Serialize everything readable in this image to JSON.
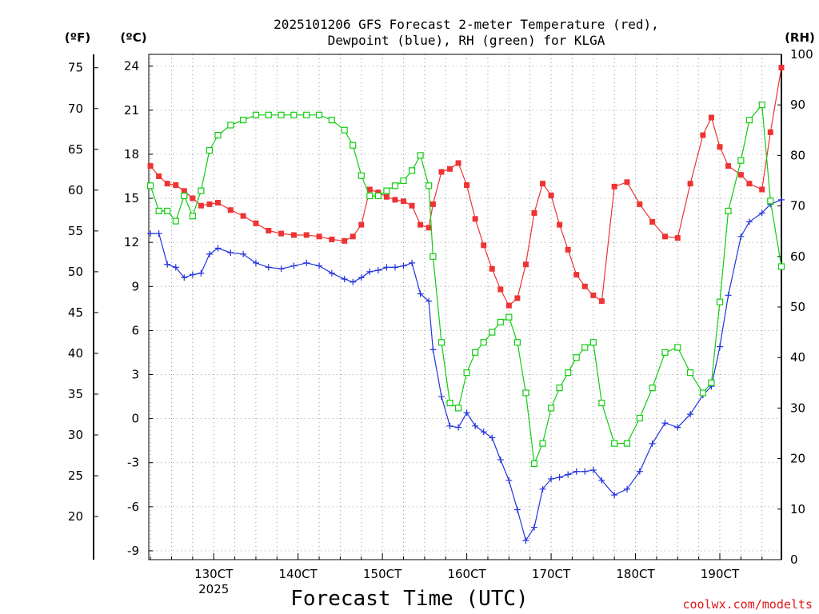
{
  "chart_data": {
    "type": "line",
    "title_line1": "2025101206 GFS Forecast 2-meter Temperature (red),",
    "title_line2": "Dewpoint (blue), RH (green) for KLGA",
    "xlabel": "Forecast Time (UTC)",
    "credit": "coolwx.com/modelts",
    "unit_f": "(ºF)",
    "unit_c": "(ºC)",
    "unit_rh": "(RH)",
    "x_range_day": [
      12.23,
      19.73
    ],
    "c_range": [
      -9.6,
      24.8
    ],
    "rh_range": [
      0,
      100
    ],
    "c_ticks": [
      -9,
      -6,
      -3,
      0,
      3,
      6,
      9,
      12,
      15,
      18,
      21,
      24
    ],
    "f_ticks": [
      20,
      25,
      30,
      35,
      40,
      45,
      50,
      55,
      60,
      65,
      70,
      75
    ],
    "rh_ticks": [
      0,
      10,
      20,
      30,
      40,
      50,
      60,
      70,
      80,
      90,
      100
    ],
    "x_ticks": [
      {
        "day": 13,
        "label": "130CT",
        "sub": "2025"
      },
      {
        "day": 14,
        "label": "140CT",
        "sub": ""
      },
      {
        "day": 15,
        "label": "150CT",
        "sub": ""
      },
      {
        "day": 16,
        "label": "160CT",
        "sub": ""
      },
      {
        "day": 17,
        "label": "170CT",
        "sub": ""
      },
      {
        "day": 18,
        "label": "180CT",
        "sub": ""
      },
      {
        "day": 19,
        "label": "190CT",
        "sub": ""
      }
    ],
    "series": [
      {
        "name": "Temperature (°C)",
        "axis": "c",
        "color": "#ee3333",
        "marker": "filled-square",
        "points": [
          [
            12.25,
            17.2
          ],
          [
            12.35,
            16.5
          ],
          [
            12.45,
            16.0
          ],
          [
            12.55,
            15.9
          ],
          [
            12.65,
            15.5
          ],
          [
            12.75,
            15.0
          ],
          [
            12.85,
            14.5
          ],
          [
            12.95,
            14.6
          ],
          [
            13.05,
            14.7
          ],
          [
            13.2,
            14.2
          ],
          [
            13.35,
            13.8
          ],
          [
            13.5,
            13.3
          ],
          [
            13.65,
            12.8
          ],
          [
            13.8,
            12.6
          ],
          [
            13.95,
            12.5
          ],
          [
            14.1,
            12.5
          ],
          [
            14.25,
            12.4
          ],
          [
            14.4,
            12.2
          ],
          [
            14.55,
            12.1
          ],
          [
            14.65,
            12.4
          ],
          [
            14.75,
            13.2
          ],
          [
            14.85,
            15.6
          ],
          [
            14.95,
            15.4
          ],
          [
            15.05,
            15.1
          ],
          [
            15.15,
            14.9
          ],
          [
            15.25,
            14.8
          ],
          [
            15.35,
            14.5
          ],
          [
            15.45,
            13.2
          ],
          [
            15.55,
            13.0
          ],
          [
            15.6,
            14.6
          ],
          [
            15.7,
            16.8
          ],
          [
            15.8,
            17.0
          ],
          [
            15.9,
            17.4
          ],
          [
            16.0,
            15.9
          ],
          [
            16.1,
            13.6
          ],
          [
            16.2,
            11.8
          ],
          [
            16.3,
            10.2
          ],
          [
            16.4,
            8.8
          ],
          [
            16.5,
            7.7
          ],
          [
            16.6,
            8.2
          ],
          [
            16.7,
            10.5
          ],
          [
            16.8,
            14.0
          ],
          [
            16.9,
            16.0
          ],
          [
            17.0,
            15.2
          ],
          [
            17.1,
            13.2
          ],
          [
            17.2,
            11.5
          ],
          [
            17.3,
            9.8
          ],
          [
            17.4,
            9.0
          ],
          [
            17.5,
            8.4
          ],
          [
            17.6,
            8.0
          ],
          [
            17.75,
            15.8
          ],
          [
            17.9,
            16.1
          ],
          [
            18.05,
            14.6
          ],
          [
            18.2,
            13.4
          ],
          [
            18.35,
            12.4
          ],
          [
            18.5,
            12.3
          ],
          [
            18.65,
            16.0
          ],
          [
            18.8,
            19.3
          ],
          [
            18.9,
            20.5
          ],
          [
            19.0,
            18.5
          ],
          [
            19.1,
            17.2
          ],
          [
            19.25,
            16.6
          ],
          [
            19.35,
            16.0
          ],
          [
            19.5,
            15.6
          ],
          [
            19.6,
            19.5
          ],
          [
            19.73,
            23.9
          ]
        ]
      },
      {
        "name": "Dewpoint (°C)",
        "axis": "c",
        "color": "#2233dd",
        "marker": "plus",
        "points": [
          [
            12.25,
            12.6
          ],
          [
            12.35,
            12.6
          ],
          [
            12.45,
            10.5
          ],
          [
            12.55,
            10.3
          ],
          [
            12.65,
            9.6
          ],
          [
            12.75,
            9.8
          ],
          [
            12.85,
            9.9
          ],
          [
            12.95,
            11.2
          ],
          [
            13.05,
            11.6
          ],
          [
            13.2,
            11.3
          ],
          [
            13.35,
            11.2
          ],
          [
            13.5,
            10.6
          ],
          [
            13.65,
            10.3
          ],
          [
            13.8,
            10.2
          ],
          [
            13.95,
            10.4
          ],
          [
            14.1,
            10.6
          ],
          [
            14.25,
            10.4
          ],
          [
            14.4,
            9.9
          ],
          [
            14.55,
            9.5
          ],
          [
            14.65,
            9.3
          ],
          [
            14.75,
            9.6
          ],
          [
            14.85,
            10.0
          ],
          [
            14.95,
            10.1
          ],
          [
            15.05,
            10.3
          ],
          [
            15.15,
            10.3
          ],
          [
            15.25,
            10.4
          ],
          [
            15.35,
            10.6
          ],
          [
            15.45,
            8.5
          ],
          [
            15.55,
            8.0
          ],
          [
            15.6,
            4.7
          ],
          [
            15.7,
            1.5
          ],
          [
            15.8,
            -0.5
          ],
          [
            15.9,
            -0.6
          ],
          [
            16.0,
            0.4
          ],
          [
            16.1,
            -0.5
          ],
          [
            16.2,
            -0.9
          ],
          [
            16.3,
            -1.3
          ],
          [
            16.4,
            -2.8
          ],
          [
            16.5,
            -4.2
          ],
          [
            16.6,
            -6.2
          ],
          [
            16.7,
            -8.3
          ],
          [
            16.8,
            -7.4
          ],
          [
            16.9,
            -4.8
          ],
          [
            17.0,
            -4.1
          ],
          [
            17.1,
            -4.0
          ],
          [
            17.2,
            -3.8
          ],
          [
            17.3,
            -3.6
          ],
          [
            17.4,
            -3.6
          ],
          [
            17.5,
            -3.5
          ],
          [
            17.6,
            -4.2
          ],
          [
            17.75,
            -5.2
          ],
          [
            17.9,
            -4.8
          ],
          [
            18.05,
            -3.6
          ],
          [
            18.2,
            -1.7
          ],
          [
            18.35,
            -0.3
          ],
          [
            18.5,
            -0.6
          ],
          [
            18.65,
            0.3
          ],
          [
            18.8,
            1.6
          ],
          [
            18.9,
            2.2
          ],
          [
            19.0,
            4.9
          ],
          [
            19.1,
            8.4
          ],
          [
            19.25,
            12.4
          ],
          [
            19.35,
            13.4
          ],
          [
            19.5,
            14.0
          ],
          [
            19.6,
            14.6
          ],
          [
            19.73,
            14.9
          ]
        ]
      },
      {
        "name": "RH (%)",
        "axis": "rh",
        "color": "#11cc11",
        "marker": "open-square",
        "points": [
          [
            12.25,
            74
          ],
          [
            12.35,
            69
          ],
          [
            12.45,
            69
          ],
          [
            12.55,
            67
          ],
          [
            12.65,
            72
          ],
          [
            12.75,
            68
          ],
          [
            12.85,
            73
          ],
          [
            12.95,
            81
          ],
          [
            13.05,
            84
          ],
          [
            13.2,
            86
          ],
          [
            13.35,
            87
          ],
          [
            13.5,
            88
          ],
          [
            13.65,
            88
          ],
          [
            13.8,
            88
          ],
          [
            13.95,
            88
          ],
          [
            14.1,
            88
          ],
          [
            14.25,
            88
          ],
          [
            14.4,
            87
          ],
          [
            14.55,
            85
          ],
          [
            14.65,
            82
          ],
          [
            14.75,
            76
          ],
          [
            14.85,
            72
          ],
          [
            14.95,
            72
          ],
          [
            15.05,
            73
          ],
          [
            15.15,
            74
          ],
          [
            15.25,
            75
          ],
          [
            15.35,
            77
          ],
          [
            15.45,
            80
          ],
          [
            15.55,
            74
          ],
          [
            15.6,
            60
          ],
          [
            15.7,
            43
          ],
          [
            15.8,
            31
          ],
          [
            15.9,
            30
          ],
          [
            16.0,
            37
          ],
          [
            16.1,
            41
          ],
          [
            16.2,
            43
          ],
          [
            16.3,
            45
          ],
          [
            16.4,
            47
          ],
          [
            16.5,
            48
          ],
          [
            16.6,
            43
          ],
          [
            16.7,
            33
          ],
          [
            16.8,
            19
          ],
          [
            16.9,
            23
          ],
          [
            17.0,
            30
          ],
          [
            17.1,
            34
          ],
          [
            17.2,
            37
          ],
          [
            17.3,
            40
          ],
          [
            17.4,
            42
          ],
          [
            17.5,
            43
          ],
          [
            17.6,
            31
          ],
          [
            17.75,
            23
          ],
          [
            17.9,
            23
          ],
          [
            18.05,
            28
          ],
          [
            18.2,
            34
          ],
          [
            18.35,
            41
          ],
          [
            18.5,
            42
          ],
          [
            18.65,
            37
          ],
          [
            18.8,
            33
          ],
          [
            18.9,
            35
          ],
          [
            19.0,
            51
          ],
          [
            19.1,
            69
          ],
          [
            19.25,
            79
          ],
          [
            19.35,
            87
          ],
          [
            19.5,
            90
          ],
          [
            19.6,
            71
          ],
          [
            19.73,
            58
          ]
        ]
      }
    ]
  }
}
